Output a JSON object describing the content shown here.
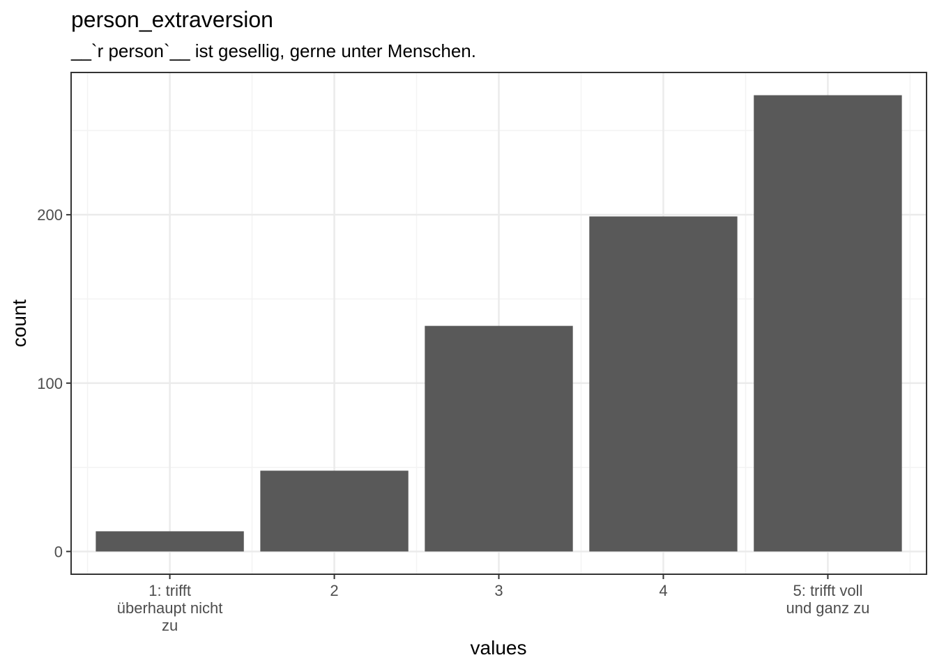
{
  "chart_data": {
    "type": "bar",
    "title": "person_extraversion",
    "subtitle": "__`r person`__ ist gesellig, gerne unter Menschen.",
    "xlabel": "values",
    "ylabel": "count",
    "categories": [
      [
        "1: trifft",
        "überhaupt nicht",
        "zu"
      ],
      [
        "2"
      ],
      [
        "3"
      ],
      [
        "4"
      ],
      [
        "5: trifft voll",
        "und ganz zu"
      ]
    ],
    "values": [
      12,
      48,
      134,
      199,
      271
    ],
    "ylim": [
      -13.5,
      284.5
    ],
    "yticks": [
      0,
      100,
      200
    ],
    "yticklabels": [
      "0",
      "100",
      "200"
    ],
    "grid": true,
    "legend": "none",
    "colors": {
      "bar": "#595959",
      "grid_major": "#ebebeb",
      "grid_minor": "#f3f3f3",
      "panel_border": "#333333",
      "tick_label": "#4d4d4d"
    }
  }
}
